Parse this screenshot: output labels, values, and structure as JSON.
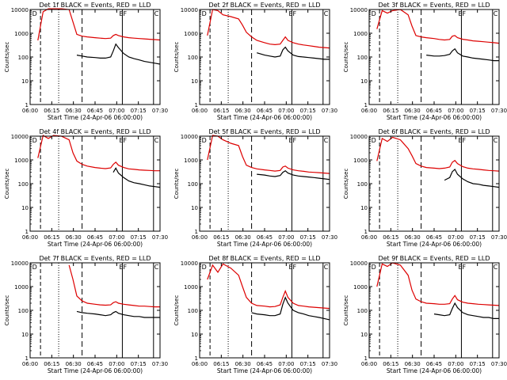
{
  "figure": {
    "ylabel": "Counts/sec",
    "xlabel": "Start Time (24-Apr-06 06:00:00)",
    "xticks": [
      "06:00",
      "06:15",
      "06:30",
      "06:45",
      "07:00",
      "07:15",
      "07:30"
    ],
    "yticks": [
      "1",
      "10",
      "100",
      "1000",
      "10000"
    ],
    "legend_markers": [
      "D",
      "E",
      "F",
      "C"
    ]
  },
  "colors": {
    "events": "#000000",
    "lld": "#dd0000"
  },
  "chart_data": [
    {
      "type": "line",
      "title": "Det 1f BLACK = Events, RED = LLD",
      "xlabel": "Start Time (24-Apr-06 06:00:00)",
      "ylabel": "Counts/sec",
      "xlim": [
        0,
        100
      ],
      "ylim": [
        1,
        10000
      ],
      "yscale": "log",
      "x": [
        6,
        10,
        14,
        18,
        24,
        30,
        33,
        36,
        40,
        44,
        50,
        54,
        58,
        62,
        64,
        66,
        68,
        72,
        76,
        80,
        84,
        88,
        92,
        96,
        100
      ],
      "series": [
        {
          "name": "BLACK = Events",
          "start": 33,
          "values": [
            null,
            null,
            null,
            null,
            null,
            null,
            null,
            120,
            110,
            100,
            95,
            90,
            90,
            100,
            180,
            350,
            250,
            140,
            100,
            85,
            75,
            65,
            60,
            55,
            50
          ]
        },
        {
          "name": "RED = LLD",
          "values": [
            500,
            8000,
            12000,
            14000,
            14000,
            10000,
            3000,
            900,
            750,
            700,
            650,
            620,
            600,
            620,
            800,
            900,
            800,
            700,
            650,
            620,
            600,
            580,
            560,
            540,
            520
          ]
        }
      ]
    },
    {
      "type": "line",
      "title": "Det 2f BLACK = Events, RED = LLD",
      "xlabel": "Start Time (24-Apr-06 06:00:00)",
      "ylabel": "Counts/sec",
      "xlim": [
        0,
        100
      ],
      "ylim": [
        1,
        10000
      ],
      "yscale": "log",
      "x": [
        6,
        10,
        14,
        18,
        24,
        30,
        33,
        36,
        40,
        44,
        50,
        54,
        58,
        62,
        64,
        66,
        68,
        72,
        76,
        80,
        84,
        88,
        92,
        96,
        100
      ],
      "series": [
        {
          "name": "BLACK = Events",
          "start": 33,
          "values": [
            null,
            null,
            null,
            null,
            null,
            null,
            null,
            null,
            null,
            150,
            120,
            110,
            100,
            110,
            200,
            260,
            180,
            120,
            105,
            100,
            95,
            90,
            85,
            80,
            80
          ]
        },
        {
          "name": "RED = LLD",
          "values": [
            800,
            10000,
            9000,
            6000,
            5000,
            4000,
            2200,
            1100,
            700,
            500,
            400,
            350,
            330,
            350,
            500,
            700,
            500,
            400,
            350,
            320,
            300,
            280,
            260,
            250,
            240
          ]
        }
      ]
    },
    {
      "type": "line",
      "title": "Det 3f BLACK = Events, RED = LLD",
      "xlabel": "Start Time (24-Apr-06 06:00:00)",
      "ylabel": "Counts/sec",
      "xlim": [
        0,
        100
      ],
      "ylim": [
        1,
        10000
      ],
      "yscale": "log",
      "x": [
        6,
        10,
        14,
        18,
        24,
        30,
        33,
        36,
        40,
        44,
        50,
        54,
        58,
        62,
        64,
        66,
        68,
        72,
        76,
        80,
        84,
        88,
        92,
        96,
        100
      ],
      "series": [
        {
          "name": "BLACK = Events",
          "start": 33,
          "values": [
            null,
            null,
            null,
            null,
            null,
            null,
            null,
            null,
            null,
            120,
            110,
            110,
            115,
            130,
            180,
            220,
            150,
            110,
            100,
            90,
            85,
            80,
            75,
            70,
            70
          ]
        },
        {
          "name": "RED = LLD",
          "values": [
            1500,
            9000,
            7000,
            9000,
            10000,
            6000,
            2000,
            800,
            700,
            650,
            600,
            550,
            520,
            550,
            750,
            800,
            650,
            560,
            520,
            480,
            460,
            440,
            420,
            400,
            380
          ]
        }
      ]
    },
    {
      "type": "line",
      "title": "Det 4f BLACK = Events, RED = LLD",
      "xlabel": "Start Time (24-Apr-06 06:00:00)",
      "ylabel": "Counts/sec",
      "xlim": [
        0,
        100
      ],
      "ylim": [
        1,
        10000
      ],
      "yscale": "log",
      "x": [
        6,
        10,
        14,
        18,
        24,
        30,
        33,
        36,
        40,
        44,
        50,
        54,
        58,
        62,
        64,
        66,
        68,
        72,
        76,
        80,
        84,
        88,
        92,
        96,
        100
      ],
      "series": [
        {
          "name": "BLACK = Events",
          "start": 33,
          "values": [
            null,
            null,
            null,
            null,
            null,
            null,
            null,
            null,
            null,
            null,
            null,
            null,
            null,
            null,
            300,
            450,
            280,
            180,
            130,
            110,
            100,
            90,
            80,
            75,
            70
          ]
        },
        {
          "name": "RED = LLD",
          "values": [
            1200,
            12000,
            8000,
            14000,
            10000,
            7000,
            2000,
            900,
            650,
            550,
            480,
            450,
            430,
            460,
            650,
            800,
            600,
            480,
            420,
            400,
            380,
            370,
            360,
            350,
            350
          ]
        }
      ]
    },
    {
      "type": "line",
      "title": "Det 5f BLACK = Events, RED = LLD",
      "xlabel": "Start Time (24-Apr-06 06:00:00)",
      "ylabel": "Counts/sec",
      "xlim": [
        0,
        100
      ],
      "ylim": [
        1,
        10000
      ],
      "yscale": "log",
      "x": [
        6,
        10,
        14,
        18,
        24,
        30,
        33,
        36,
        40,
        44,
        50,
        54,
        58,
        62,
        64,
        66,
        68,
        72,
        76,
        80,
        84,
        88,
        92,
        96,
        100
      ],
      "series": [
        {
          "name": "BLACK = Events",
          "start": 33,
          "values": [
            null,
            null,
            null,
            null,
            null,
            null,
            null,
            null,
            null,
            250,
            230,
            210,
            200,
            220,
            300,
            350,
            280,
            230,
            210,
            200,
            190,
            180,
            170,
            160,
            150
          ]
        },
        {
          "name": "RED = LLD",
          "values": [
            1000,
            12000,
            10000,
            7000,
            5000,
            4000,
            1400,
            600,
            480,
            420,
            380,
            360,
            340,
            360,
            500,
            550,
            450,
            380,
            350,
            330,
            310,
            300,
            290,
            280,
            270
          ]
        }
      ]
    },
    {
      "type": "line",
      "title": "Det 6f BLACK = Events, RED = LLD",
      "xlabel": "Start Time (24-Apr-06 06:00:00)",
      "ylabel": "Counts/sec",
      "xlim": [
        0,
        100
      ],
      "ylim": [
        1,
        10000
      ],
      "yscale": "log",
      "x": [
        6,
        10,
        14,
        18,
        24,
        30,
        33,
        36,
        40,
        44,
        50,
        54,
        58,
        62,
        64,
        66,
        68,
        72,
        76,
        80,
        84,
        88,
        92,
        96,
        100
      ],
      "series": [
        {
          "name": "BLACK = Events",
          "start": 33,
          "values": [
            null,
            null,
            null,
            null,
            null,
            null,
            null,
            null,
            null,
            null,
            null,
            null,
            140,
            180,
            320,
            400,
            250,
            160,
            120,
            100,
            95,
            85,
            80,
            75,
            70
          ]
        },
        {
          "name": "RED = LLD",
          "values": [
            900,
            8000,
            6000,
            9000,
            7000,
            3000,
            1500,
            700,
            550,
            480,
            450,
            430,
            450,
            500,
            800,
            950,
            700,
            520,
            450,
            420,
            400,
            380,
            360,
            350,
            340
          ]
        }
      ]
    },
    {
      "type": "line",
      "title": "Det 7f BLACK = Events, RED = LLD",
      "xlabel": "Start Time (24-Apr-06 06:00:00)",
      "ylabel": "Counts/sec",
      "xlim": [
        0,
        100
      ],
      "ylim": [
        1,
        10000
      ],
      "yscale": "log",
      "x": [
        6,
        10,
        14,
        18,
        24,
        30,
        33,
        36,
        40,
        44,
        50,
        54,
        58,
        62,
        64,
        66,
        68,
        72,
        76,
        80,
        84,
        88,
        92,
        96,
        100
      ],
      "series": [
        {
          "name": "BLACK = Events",
          "start": 36,
          "values": [
            null,
            null,
            null,
            null,
            null,
            null,
            null,
            90,
            80,
            75,
            70,
            65,
            60,
            65,
            80,
            90,
            75,
            65,
            60,
            55,
            55,
            50,
            50,
            50,
            50
          ]
        },
        {
          "name": "RED = LLD",
          "values": [
            null,
            null,
            null,
            null,
            null,
            8000,
            2000,
            400,
            250,
            200,
            180,
            170,
            165,
            170,
            210,
            230,
            200,
            180,
            170,
            160,
            150,
            150,
            145,
            140,
            140
          ]
        }
      ]
    },
    {
      "type": "line",
      "title": "Det 8f BLACK = Events, RED = LLD",
      "xlabel": "Start Time (24-Apr-06 06:00:00)",
      "ylabel": "Counts/sec",
      "xlim": [
        0,
        100
      ],
      "ylim": [
        1,
        10000
      ],
      "yscale": "log",
      "x": [
        6,
        10,
        14,
        18,
        24,
        30,
        33,
        36,
        40,
        44,
        50,
        54,
        58,
        62,
        64,
        66,
        68,
        72,
        76,
        80,
        84,
        88,
        92,
        96,
        100
      ],
      "series": [
        {
          "name": "BLACK = Events",
          "start": 40,
          "values": [
            null,
            null,
            null,
            null,
            null,
            null,
            null,
            null,
            80,
            70,
            65,
            60,
            60,
            70,
            180,
            350,
            200,
            100,
            80,
            70,
            60,
            55,
            50,
            45,
            40
          ]
        },
        {
          "name": "RED = LLD",
          "values": [
            2000,
            8000,
            4000,
            9000,
            6000,
            3000,
            1000,
            350,
            200,
            160,
            150,
            140,
            145,
            170,
            350,
            650,
            350,
            200,
            160,
            150,
            140,
            135,
            130,
            125,
            120
          ]
        }
      ]
    },
    {
      "type": "line",
      "title": "Det 9f BLACK = Events, RED = LLD",
      "xlabel": "Start Time (24-Apr-06 06:00:00)",
      "ylabel": "Counts/sec",
      "xlim": [
        0,
        100
      ],
      "ylim": [
        1,
        10000
      ],
      "yscale": "log",
      "x": [
        6,
        10,
        14,
        18,
        24,
        30,
        33,
        36,
        40,
        44,
        50,
        54,
        58,
        62,
        64,
        66,
        68,
        72,
        76,
        80,
        84,
        88,
        92,
        96,
        100
      ],
      "series": [
        {
          "name": "BLACK = Events",
          "start": 33,
          "values": [
            null,
            null,
            null,
            null,
            null,
            null,
            null,
            null,
            null,
            null,
            70,
            65,
            60,
            65,
            120,
            200,
            130,
            80,
            65,
            60,
            55,
            50,
            50,
            45,
            45
          ]
        },
        {
          "name": "RED = LLD",
          "values": [
            1000,
            9000,
            7000,
            10000,
            8000,
            3000,
            700,
            300,
            230,
            200,
            190,
            180,
            180,
            190,
            300,
            420,
            280,
            220,
            200,
            190,
            180,
            175,
            170,
            165,
            160
          ]
        }
      ]
    }
  ]
}
